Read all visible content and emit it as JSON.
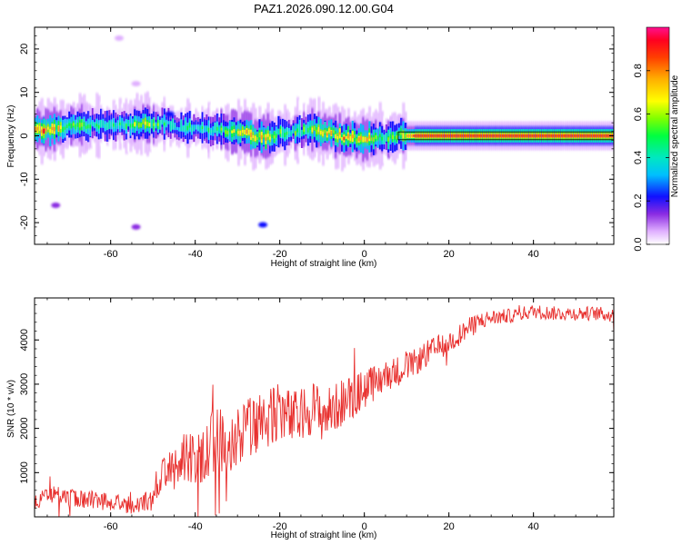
{
  "figure_title": "PAZ1.2026.090.12.00.G04",
  "colors": {
    "background": "#ffffff",
    "axes": "#000000",
    "snr_line": "#e8302e"
  },
  "chart_data": [
    {
      "type": "heatmap",
      "title": "PAZ1.2026.090.12.00.G04",
      "xlabel": "Height of straight line (km)",
      "ylabel": "Frequency (Hz)",
      "xlim": [
        -78,
        59
      ],
      "ylim": [
        -25,
        25
      ],
      "xticks": [
        -60,
        -40,
        -20,
        0,
        20,
        40
      ],
      "xtick_labels": [
        "-60",
        "-40",
        "-20",
        "0",
        "20",
        "40"
      ],
      "yticks": [
        -20,
        -10,
        0,
        10,
        20
      ],
      "ytick_labels": [
        "-20",
        "-10",
        "0",
        "10",
        "20"
      ],
      "colorbar": {
        "label": "Normalized spectral amplitude",
        "range": [
          0,
          1
        ],
        "ticks": [
          0.0,
          0.2,
          0.4,
          0.6,
          0.8
        ],
        "tick_labels": [
          "0.0",
          "0.2",
          "0.4",
          "0.6",
          "0.8"
        ]
      },
      "ridge": {
        "description_points_height_km": [
          -76,
          -72,
          -68,
          -64,
          -60,
          -56,
          -52,
          -48,
          -44,
          -40,
          -36,
          -32,
          -28,
          -24,
          -20,
          -16,
          -12,
          -8,
          -4,
          0,
          4,
          8,
          12,
          20,
          30,
          40,
          50,
          58
        ],
        "peak_frequency_hz": [
          1.5,
          2.0,
          2.5,
          2.5,
          2.5,
          2.8,
          3.0,
          2.8,
          2.0,
          1.8,
          1.5,
          1.0,
          0.5,
          -0.5,
          0.5,
          1.0,
          1.5,
          0.5,
          -0.5,
          -0.8,
          -0.5,
          0.0,
          0.0,
          0.0,
          0.0,
          0.0,
          0.0,
          0.0
        ],
        "peak_amplitude": [
          0.9,
          0.7,
          0.6,
          0.55,
          0.5,
          0.6,
          0.7,
          0.5,
          0.45,
          0.5,
          0.5,
          0.65,
          0.75,
          0.8,
          0.6,
          0.55,
          0.75,
          0.8,
          0.8,
          0.85,
          0.6,
          0.7,
          0.9,
          0.9,
          0.9,
          0.9,
          0.9,
          0.9
        ]
      },
      "scatter_blobs_hz": [
        {
          "x": -73,
          "y": -16,
          "amp": 0.1
        },
        {
          "x": -54,
          "y": -21,
          "amp": 0.1
        },
        {
          "x": -24,
          "y": -20.5,
          "amp": 0.2
        },
        {
          "x": -54,
          "y": 12,
          "amp": 0.05
        },
        {
          "x": -46,
          "y": 5,
          "amp": 0.2
        },
        {
          "x": -58,
          "y": 22.5,
          "amp": 0.05
        }
      ]
    },
    {
      "type": "line",
      "xlabel": "Height of straight line (km)",
      "ylabel": "SNR (10 * v/v)",
      "xlim": [
        -78,
        59
      ],
      "ylim": [
        0,
        4950
      ],
      "xticks": [
        -60,
        -40,
        -20,
        0,
        20,
        40
      ],
      "xtick_labels": [
        "-60",
        "-40",
        "-20",
        "0",
        "20",
        "40"
      ],
      "yticks": [
        1000,
        2000,
        3000,
        4000
      ],
      "ytick_labels": [
        "1000",
        "2000",
        "3000",
        "4000"
      ],
      "series": [
        {
          "name": "SNR",
          "x": [
            -78,
            -75,
            -70,
            -65,
            -60,
            -55,
            -50,
            -48,
            -45,
            -42,
            -40,
            -37,
            -35,
            -32,
            -30,
            -27,
            -25,
            -22,
            -20,
            -17,
            -15,
            -12,
            -10,
            -7,
            -5,
            -2,
            0,
            3,
            5,
            8,
            10,
            13,
            15,
            18,
            20,
            23,
            25,
            28,
            30,
            35,
            40,
            45,
            50,
            55,
            59
          ],
          "values": [
            300,
            550,
            420,
            380,
            350,
            250,
            400,
            900,
            1100,
            1400,
            1300,
            1500,
            1800,
            1700,
            1750,
            2000,
            2100,
            2250,
            2400,
            2200,
            2300,
            2500,
            2300,
            2450,
            2600,
            2750,
            2900,
            3050,
            3200,
            3300,
            3400,
            3550,
            3700,
            3850,
            3950,
            4150,
            4300,
            4450,
            4500,
            4550,
            4650,
            4600,
            4600,
            4600,
            4550
          ],
          "noise_amplitude": [
            200,
            200,
            220,
            220,
            200,
            200,
            250,
            400,
            500,
            600,
            600,
            700,
            800,
            700,
            700,
            700,
            700,
            650,
            650,
            650,
            600,
            600,
            600,
            550,
            550,
            500,
            450,
            400,
            350,
            350,
            300,
            300,
            300,
            280,
            260,
            240,
            220,
            200,
            180,
            160,
            160,
            160,
            160,
            160,
            160
          ]
        }
      ]
    }
  ]
}
